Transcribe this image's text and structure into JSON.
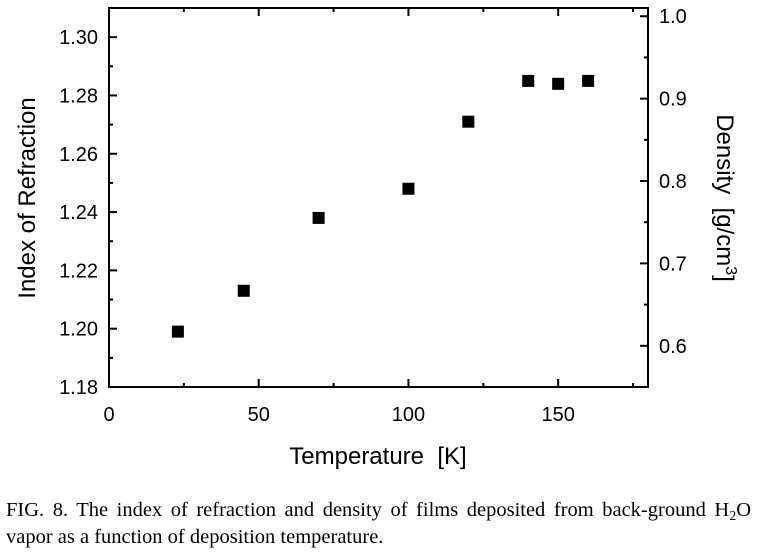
{
  "chart_data": {
    "type": "scatter",
    "xlabel": "Temperature  [K]",
    "ylabel": "Index of Refraction",
    "y2label_main": "Density  [g/cm",
    "y2label_sup": "3",
    "y2label_end": "]",
    "xlim": [
      0,
      180
    ],
    "ylim": [
      1.18,
      1.31
    ],
    "y2lim": [
      0.55,
      1.01
    ],
    "xticks": [
      "0",
      "50",
      "100",
      "150"
    ],
    "yticks": [
      "1.18",
      "1.20",
      "1.22",
      "1.24",
      "1.26",
      "1.28",
      "1.30"
    ],
    "y2ticks": [
      "0.6",
      "0.7",
      "0.8",
      "0.9",
      "1.0"
    ],
    "grid": false,
    "series": [
      {
        "marker": "filled-square",
        "color": "#000000",
        "points": [
          {
            "x": 23,
            "y": 1.199
          },
          {
            "x": 45,
            "y": 1.213
          },
          {
            "x": 70,
            "y": 1.238
          },
          {
            "x": 100,
            "y": 1.248
          },
          {
            "x": 120,
            "y": 1.271
          },
          {
            "x": 140,
            "y": 1.285
          },
          {
            "x": 150,
            "y": 1.284
          },
          {
            "x": 160,
            "y": 1.285
          }
        ]
      }
    ]
  },
  "caption": {
    "part1": "FIG. 8. The index of refraction and density of films deposited from back-ground H",
    "sub": "2",
    "part2": "O vapor as a function of deposition temperature."
  }
}
